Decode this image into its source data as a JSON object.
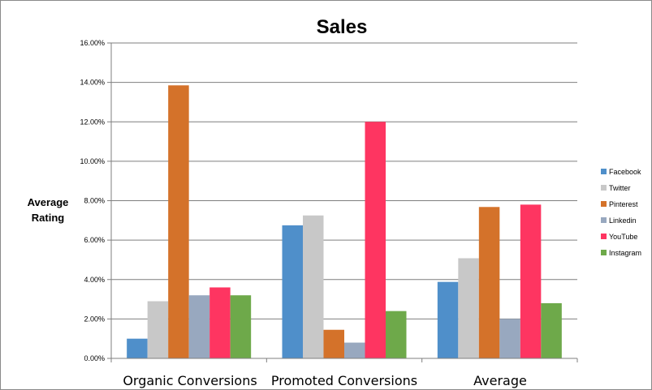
{
  "chart_data": {
    "type": "bar",
    "title": "Sales",
    "ylabel_lines": [
      "Average",
      "Rating"
    ],
    "categories": [
      "Organic Conversions",
      "Promoted Conversions",
      "Average"
    ],
    "ylim": [
      0,
      16
    ],
    "ytick_values": [
      0,
      2,
      4,
      6,
      8,
      10,
      12,
      14,
      16
    ],
    "ytick_labels": [
      "0.00%",
      "2.00%",
      "4.00%",
      "6.00%",
      "8.00%",
      "10.00%",
      "12.00%",
      "14.00%",
      "16.00%"
    ],
    "grid": true,
    "legend_position": "right",
    "series": [
      {
        "name": "Facebook",
        "color": "#4f8fca",
        "values": [
          1.0,
          6.75,
          3.88
        ]
      },
      {
        "name": "Twitter",
        "color": "#c8c8c8",
        "values": [
          2.9,
          7.25,
          5.08
        ]
      },
      {
        "name": "Pinterest",
        "color": "#d4722a",
        "values": [
          13.85,
          1.45,
          7.68
        ]
      },
      {
        "name": "Linkedin",
        "color": "#98a8bf",
        "values": [
          3.2,
          0.8,
          2.0
        ]
      },
      {
        "name": "YouTube",
        "color": "#fe3561",
        "values": [
          3.6,
          12.0,
          7.8
        ]
      },
      {
        "name": "Instagram",
        "color": "#6ea94a",
        "values": [
          3.2,
          2.4,
          2.8
        ]
      }
    ]
  }
}
